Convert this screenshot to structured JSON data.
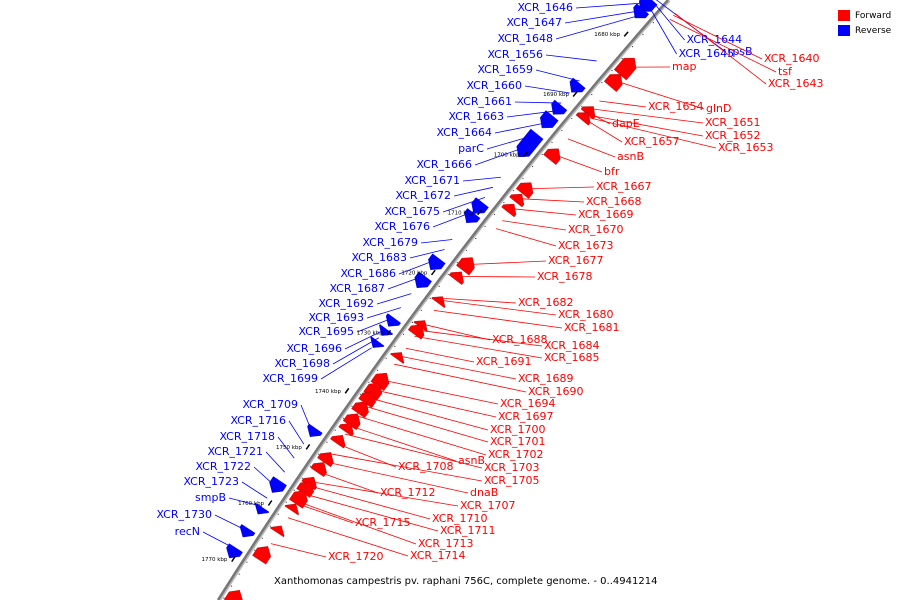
{
  "legend": {
    "forward": {
      "label": "Forward",
      "color": "#ff0000"
    },
    "reverse": {
      "label": "Reverse",
      "color": "#0000ff"
    }
  },
  "caption": "Xanthomonas campestris pv. raphani 756C, complete genome. - 0..4941214",
  "backbone_color": "#777777",
  "ticks": [
    "1680 kbp",
    "1690 kbp",
    "1700 kbp",
    "1710 kbp",
    "1720 kbp",
    "1730 kbp",
    "1740 kbp",
    "1750 kbp",
    "1760 kbp",
    "1770 kbp"
  ],
  "reverse_labels": [
    "XCR_1646",
    "XCR_1647",
    "XCR_1648",
    "XCR_1644",
    "XCR_1645",
    "rpsB",
    "XCR_1656",
    "XCR_1659",
    "XCR_1660",
    "XCR_1661",
    "XCR_1663",
    "XCR_1664",
    "parC",
    "XCR_1666",
    "XCR_1671",
    "XCR_1672",
    "XCR_1675",
    "XCR_1676",
    "XCR_1679",
    "XCR_1683",
    "XCR_1686",
    "XCR_1687",
    "XCR_1692",
    "XCR_1693",
    "XCR_1695",
    "XCR_1696",
    "XCR_1698",
    "XCR_1699",
    "XCR_1709",
    "XCR_1716",
    "XCR_1718",
    "XCR_1721",
    "XCR_1722",
    "XCR_1723",
    "smpB",
    "XCR_1730",
    "recN"
  ],
  "forward_labels": [
    "XCR_1640",
    "tsf",
    "XCR_1643",
    "map",
    "glnD",
    "XCR_1654",
    "XCR_1651",
    "dapE",
    "XCR_1652",
    "XCR_1657",
    "XCR_1653",
    "asnB",
    "bfr",
    "XCR_1667",
    "XCR_1668",
    "XCR_1669",
    "XCR_1670",
    "XCR_1673",
    "XCR_1677",
    "XCR_1678",
    "XCR_1682",
    "XCR_1680",
    "XCR_1681",
    "XCR_1688",
    "XCR_1684",
    "XCR_1685",
    "XCR_1691",
    "XCR_1689",
    "XCR_1690",
    "XCR_1694",
    "XCR_1697",
    "XCR_1700",
    "XCR_1701",
    "XCR_1702",
    "asnB",
    "XCR_1703",
    "XCR_1708",
    "XCR_1705",
    "dnaB",
    "XCR_1712",
    "XCR_1707",
    "XCR_1710",
    "XCR_1715",
    "XCR_1711",
    "XCR_1713",
    "XCR_1714",
    "XCR_1720"
  ]
}
